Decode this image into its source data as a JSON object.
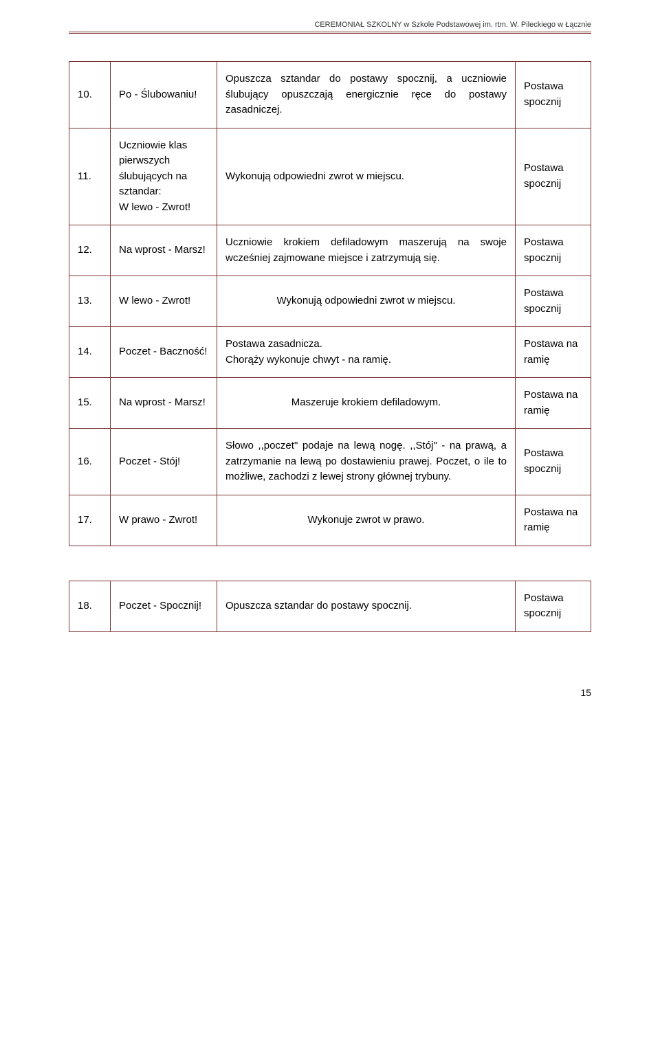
{
  "header": "CEREMONIAŁ SZKOLNY w Szkole Podstawowej im. rtm. W. Pileckiego w Łącznie",
  "table1": {
    "rows": [
      {
        "num": "10.",
        "cmd": "Po - Ślubowaniu!",
        "desc": "Opuszcza sztandar do postawy spocznij, a uczniowie ślubujący opuszczają energicznie ręce do postawy zasadniczej.",
        "pos": "Postawa spocznij",
        "descAlign": "justify"
      },
      {
        "num": "11.",
        "cmd": "Uczniowie klas pierwszych ślubujących na sztandar:\nW lewo - Zwrot!",
        "desc": "Wykonują odpowiedni zwrot w miejscu.",
        "pos": "Postawa spocznij",
        "descAlign": "left"
      },
      {
        "num": "12.",
        "cmd": "Na wprost - Marsz!",
        "desc": "Uczniowie krokiem defiladowym maszerują na swoje wcześniej zajmowane miejsce i zatrzymują się.",
        "pos": "Postawa spocznij",
        "descAlign": "justify"
      },
      {
        "num": "13.",
        "cmd": "W lewo - Zwrot!",
        "desc": "Wykonują odpowiedni zwrot w miejscu.",
        "pos": "Postawa spocznij",
        "descAlign": "center"
      },
      {
        "num": "14.",
        "cmd": "Poczet - Baczność!",
        "desc": "Postawa zasadnicza.\nChorąży wykonuje chwyt - na ramię.",
        "pos": "Postawa na ramię",
        "descAlign": "left"
      },
      {
        "num": "15.",
        "cmd": "Na wprost - Marsz!",
        "desc": "Maszeruje krokiem defiladowym.",
        "pos": "Postawa na ramię",
        "descAlign": "center"
      },
      {
        "num": "16.",
        "cmd": "Poczet - Stój!",
        "desc": "Słowo ,,poczet\" podaje na lewą nogę. ,,Stój\" - na prawą, a zatrzymanie na lewą po dostawieniu prawej. Poczet, o ile to możliwe, zachodzi z lewej strony głównej trybuny.",
        "pos": "Postawa spocznij",
        "descAlign": "justify"
      },
      {
        "num": "17.",
        "cmd": "W prawo - Zwrot!",
        "desc": "Wykonuje zwrot w prawo.",
        "pos": "Postawa na ramię",
        "descAlign": "center"
      }
    ]
  },
  "table2": {
    "rows": [
      {
        "num": "18.",
        "cmd": "Poczet - Spocznij!",
        "desc": "Opuszcza sztandar do postawy spocznij.",
        "pos": "Postawa spocznij",
        "descAlign": "left"
      }
    ]
  },
  "pageNumber": "15"
}
